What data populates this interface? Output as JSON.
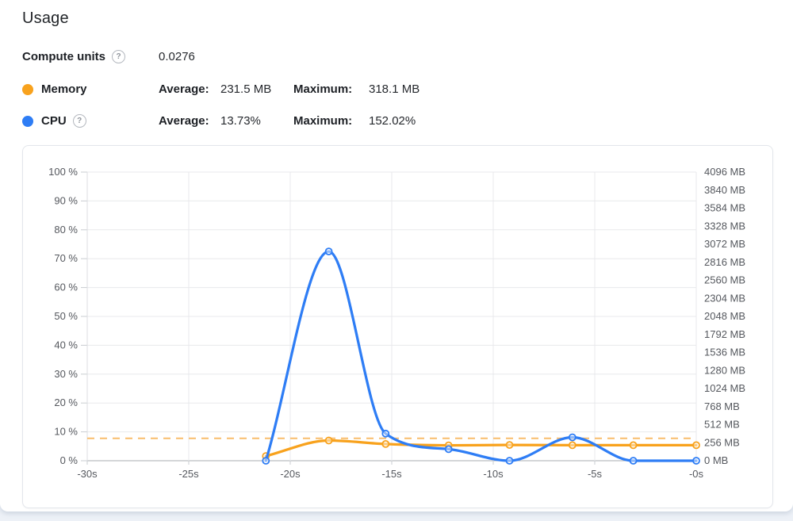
{
  "page": {
    "title": "Usage"
  },
  "icons": {
    "help_glyph": "?"
  },
  "stats": {
    "compute": {
      "label": "Compute units",
      "value": "0.0276"
    },
    "rows": [
      {
        "label": "Memory",
        "color": "#f8a21d",
        "avg_label": "Average:",
        "avg": "231.5 MB",
        "max_label": "Maximum:",
        "max": "318.1 MB"
      },
      {
        "label": "CPU",
        "color": "#2e7df5",
        "avg_label": "Average:",
        "avg": "13.73%",
        "max_label": "Maximum:",
        "max": "152.02%"
      }
    ]
  },
  "chart_data": {
    "type": "line",
    "x": [
      -21.2,
      -18.1,
      -15.3,
      -12.2,
      -9.2,
      -6.1,
      -3.1,
      0
    ],
    "x_tick_values": [
      -30,
      -25,
      -20,
      -15,
      -10,
      -5,
      0
    ],
    "x_ticks": [
      "-30s",
      "-25s",
      "-20s",
      "-15s",
      "-10s",
      "-5s",
      "-0s"
    ],
    "left_axis": {
      "min": 0,
      "max": 100,
      "step": 10,
      "ticks": [
        "100 %",
        "90 %",
        "80 %",
        "70 %",
        "60 %",
        "50 %",
        "40 %",
        "30 %",
        "20 %",
        "10 %",
        "0 %"
      ]
    },
    "right_axis": {
      "min": 0,
      "max": 4096,
      "step": 256,
      "ticks": [
        "4096 MB",
        "3840 MB",
        "3584 MB",
        "3328 MB",
        "3072 MB",
        "2816 MB",
        "2560 MB",
        "2304 MB",
        "2048 MB",
        "1792 MB",
        "1536 MB",
        "1280 MB",
        "1024 MB",
        "768 MB",
        "512 MB",
        "256 MB",
        "0 MB"
      ]
    },
    "series": [
      {
        "name": "CPU",
        "axis": "left",
        "color": "#2e7df5",
        "values": [
          0,
          72.5,
          9.4,
          4.0,
          0,
          8.1,
          0,
          0
        ]
      },
      {
        "name": "Memory",
        "axis": "right",
        "color": "#f8a21d",
        "values": [
          66,
          287,
          237,
          218,
          224,
          220,
          220,
          220
        ]
      }
    ],
    "reference_line": {
      "axis": "right",
      "value": 318.1,
      "style": "dashed",
      "color": "#f9bd6b",
      "meaning": "memory-maximum"
    },
    "grid": true,
    "legend_position": "header-rows",
    "colors": {
      "grid": "#e8e9ec",
      "baseline": "#aaadb2",
      "axis_line": "#dcdee2",
      "tick": "#c9ccd1",
      "tick_text": "#55585e"
    }
  }
}
